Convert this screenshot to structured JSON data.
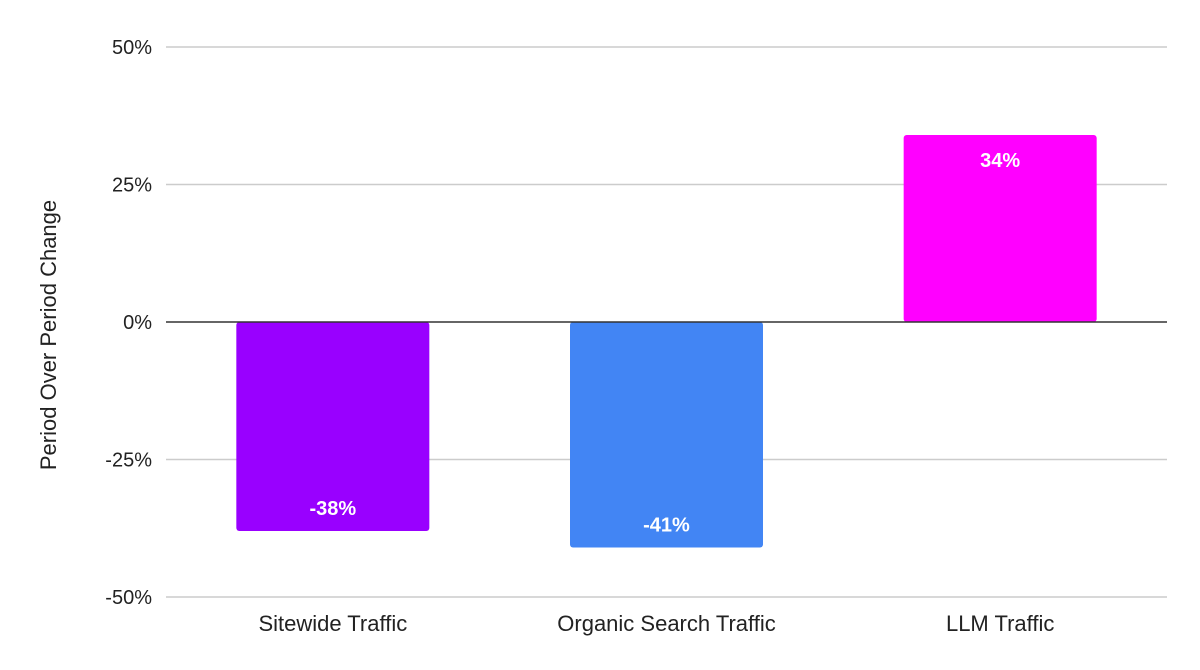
{
  "chart_data": {
    "type": "bar",
    "categories": [
      "Sitewide Traffic",
      "Organic Search Traffic",
      "LLM Traffic"
    ],
    "values": [
      -38,
      -41,
      34
    ],
    "data_labels": [
      "-38%",
      "-41%",
      "34%"
    ],
    "colors": [
      "#9900ff",
      "#4285f4",
      "#ff00ff"
    ],
    "title": "",
    "xlabel": "",
    "ylabel": "Period Over Period Change",
    "ylim": [
      -50,
      50
    ],
    "yticks": [
      50,
      25,
      0,
      -25,
      -50
    ],
    "ytick_labels": [
      "50%",
      "25%",
      "0%",
      "-25%",
      "-50%"
    ],
    "grid": true,
    "legend": "none"
  }
}
